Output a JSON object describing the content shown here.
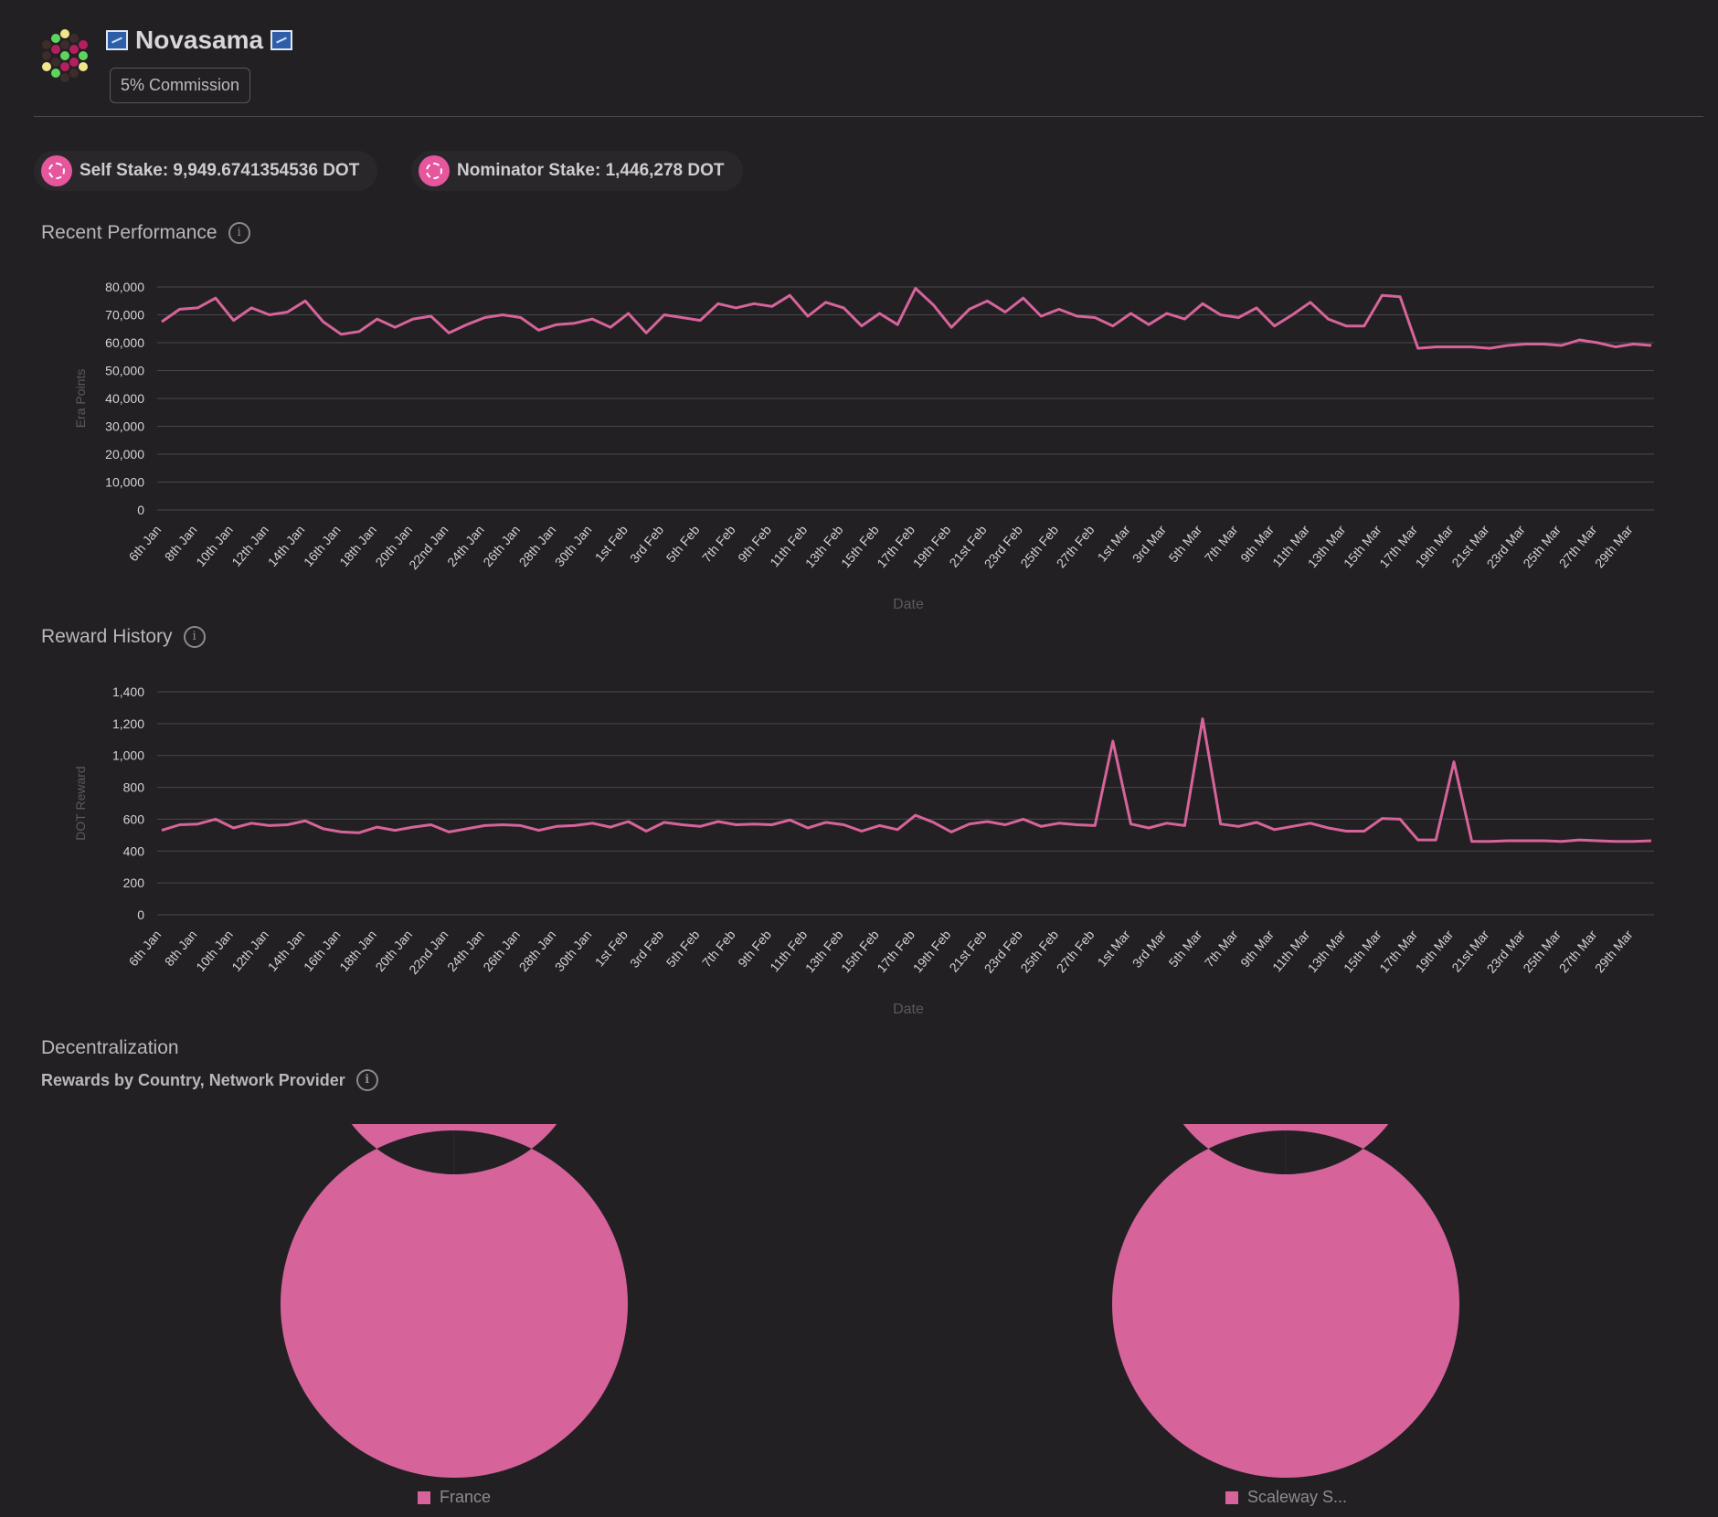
{
  "header": {
    "name": "Novasama",
    "commission": "5% Commission"
  },
  "stakes": {
    "self": "Self Stake: 9,949.6741354536 DOT",
    "nominator": "Nominator Stake: 1,446,278 DOT"
  },
  "sections": {
    "performance": "Recent Performance",
    "rewards": "Reward History",
    "decentralization": "Decentralization",
    "decentralization_sub": "Rewards by Country, Network Provider",
    "info_glyph": "i"
  },
  "colors": {
    "accent": "#d6649b",
    "background": "#232024",
    "grid": "#4a474c"
  },
  "chart_data": [
    {
      "type": "line",
      "ylabel": "Era Points",
      "xlabel": "Date",
      "ylim": [
        0,
        80000
      ],
      "yticks": [
        "0",
        "10,000",
        "20,000",
        "30,000",
        "40,000",
        "50,000",
        "60,000",
        "70,000",
        "80,000"
      ],
      "ytick_values": [
        0,
        10000,
        20000,
        30000,
        40000,
        50000,
        60000,
        70000,
        80000
      ],
      "xtick_labels": [
        "6th Jan",
        "8th Jan",
        "10th Jan",
        "12th Jan",
        "14th Jan",
        "16th Jan",
        "18th Jan",
        "20th Jan",
        "22nd Jan",
        "24th Jan",
        "26th Jan",
        "28th Jan",
        "30th Jan",
        "1st Feb",
        "3rd Feb",
        "5th Feb",
        "7th Feb",
        "9th Feb",
        "11th Feb",
        "13th Feb",
        "15th Feb",
        "17th Feb",
        "19th Feb",
        "21st Feb",
        "23rd Feb",
        "25th Feb",
        "27th Feb",
        "1st Mar",
        "3rd Mar",
        "5th Mar",
        "7th Mar",
        "9th Mar",
        "11th Mar",
        "13th Mar",
        "15th Mar",
        "17th Mar",
        "19th Mar",
        "21st Mar",
        "23rd Mar",
        "25th Mar",
        "27th Mar",
        "29th Mar"
      ],
      "series": [
        {
          "values": [
            67500,
            72000,
            72500,
            76000,
            68000,
            72500,
            70000,
            71000,
            75000,
            67500,
            63000,
            64000,
            68500,
            65500,
            68500,
            69500,
            63500,
            66500,
            69000,
            70000,
            69000,
            64500,
            66500,
            67000,
            68500,
            65500,
            70500,
            63500,
            70000,
            69000,
            68000,
            74000,
            72500,
            74000,
            73000,
            77000,
            69500,
            74500,
            72500,
            66000,
            70500,
            66500,
            79500,
            73500,
            65500,
            72000,
            75000,
            71000,
            76000,
            69500,
            72000,
            69500,
            69000,
            66000,
            70500,
            66500,
            70500,
            68500,
            74000,
            70000,
            69000,
            72500,
            66000,
            70000,
            74500,
            68500,
            66000,
            66000,
            77000,
            76500,
            58000,
            58500,
            58500,
            58500,
            58000,
            59000,
            59500,
            59500,
            59000,
            61000,
            60000,
            58500,
            59500,
            59000
          ]
        }
      ]
    },
    {
      "type": "line",
      "ylabel": "DOT Reward",
      "xlabel": "Date",
      "ylim": [
        0,
        1400
      ],
      "yticks": [
        "0",
        "200",
        "400",
        "600",
        "800",
        "1,000",
        "1,200",
        "1,400"
      ],
      "ytick_values": [
        0,
        200,
        400,
        600,
        800,
        1000,
        1200,
        1400
      ],
      "xtick_labels": [
        "6th Jan",
        "8th Jan",
        "10th Jan",
        "12th Jan",
        "14th Jan",
        "16th Jan",
        "18th Jan",
        "20th Jan",
        "22nd Jan",
        "24th Jan",
        "26th Jan",
        "28th Jan",
        "30th Jan",
        "1st Feb",
        "3rd Feb",
        "5th Feb",
        "7th Feb",
        "9th Feb",
        "11th Feb",
        "13th Feb",
        "15th Feb",
        "17th Feb",
        "19th Feb",
        "21st Feb",
        "23rd Feb",
        "25th Feb",
        "27th Feb",
        "1st Mar",
        "3rd Mar",
        "5th Mar",
        "7th Mar",
        "9th Mar",
        "11th Mar",
        "13th Mar",
        "15th Mar",
        "17th Mar",
        "19th Mar",
        "21st Mar",
        "23rd Mar",
        "25th Mar",
        "27th Mar",
        "29th Mar"
      ],
      "series": [
        {
          "values": [
            530,
            565,
            570,
            600,
            545,
            575,
            560,
            565,
            590,
            540,
            520,
            515,
            550,
            530,
            550,
            565,
            520,
            540,
            560,
            565,
            560,
            530,
            555,
            560,
            575,
            550,
            585,
            525,
            580,
            565,
            555,
            585,
            565,
            570,
            565,
            595,
            545,
            580,
            565,
            525,
            560,
            535,
            625,
            580,
            520,
            570,
            585,
            565,
            600,
            555,
            575,
            565,
            560,
            1090,
            570,
            545,
            575,
            560,
            1230,
            570,
            555,
            580,
            535,
            555,
            575,
            545,
            525,
            525,
            605,
            600,
            470,
            470,
            960,
            460,
            460,
            465,
            465,
            465,
            460,
            470,
            465,
            460,
            460,
            465
          ]
        }
      ]
    },
    {
      "type": "pie",
      "labels": [
        "France"
      ],
      "values": [
        100
      ]
    },
    {
      "type": "pie",
      "labels": [
        "Scaleway S..."
      ],
      "values": [
        100
      ]
    }
  ]
}
